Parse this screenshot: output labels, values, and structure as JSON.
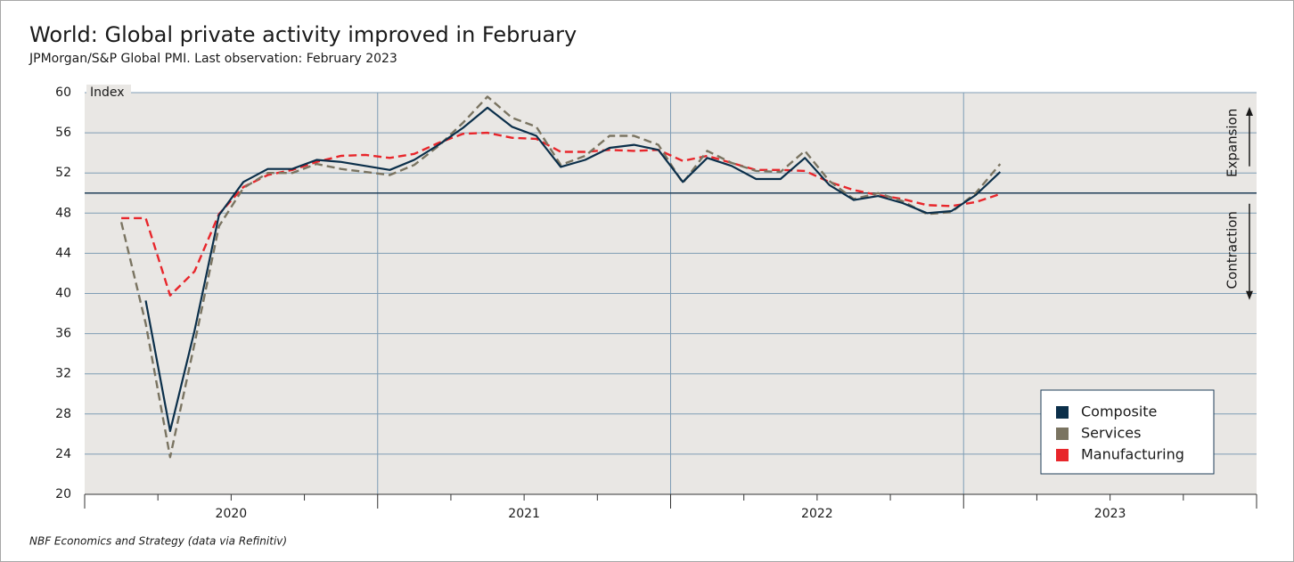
{
  "chart_data": {
    "type": "line",
    "title": "World: Global private activity improved in February",
    "subtitle": "JPMorgan/S&P Global PMI. Last observation: February 2023",
    "y_axis_label": "Index",
    "source": "NBF Economics and Strategy (data via Refinitiv)",
    "annotations": [
      "Expansion",
      "Contraction"
    ],
    "reference_line": 50,
    "x": [
      "2020-02",
      "2020-03",
      "2020-04",
      "2020-05",
      "2020-06",
      "2020-07",
      "2020-08",
      "2020-09",
      "2020-10",
      "2020-11",
      "2020-12",
      "2021-01",
      "2021-02",
      "2021-03",
      "2021-04",
      "2021-05",
      "2021-06",
      "2021-07",
      "2021-08",
      "2021-09",
      "2021-10",
      "2021-11",
      "2021-12",
      "2022-01",
      "2022-02",
      "2022-03",
      "2022-04",
      "2022-05",
      "2022-06",
      "2022-07",
      "2022-08",
      "2022-09",
      "2022-10",
      "2022-11",
      "2022-12",
      "2023-01",
      "2023-02"
    ],
    "series": [
      {
        "name": "Composite",
        "color": "#0b2f4a",
        "dash": false,
        "values": [
          null,
          39.3,
          26.3,
          36.3,
          47.8,
          51.1,
          52.4,
          52.4,
          53.3,
          53.1,
          52.7,
          52.3,
          53.3,
          54.8,
          56.5,
          58.5,
          56.6,
          55.7,
          52.6,
          53.3,
          54.5,
          54.8,
          54.3,
          51.1,
          53.5,
          52.7,
          51.4,
          51.4,
          53.5,
          50.8,
          49.3,
          49.7,
          49.0,
          48.0,
          48.2,
          49.8,
          52.1
        ]
      },
      {
        "name": "Services",
        "color": "#7a7461",
        "dash": true,
        "values": [
          47.1,
          37.0,
          23.7,
          35.0,
          46.7,
          50.5,
          52.0,
          52.0,
          52.9,
          52.4,
          52.1,
          51.8,
          52.8,
          54.7,
          57.0,
          59.6,
          57.5,
          56.6,
          52.8,
          53.7,
          55.7,
          55.7,
          54.8,
          51.0,
          54.2,
          53.0,
          52.2,
          52.1,
          54.2,
          51.2,
          49.4,
          50.0,
          49.2,
          47.9,
          48.1,
          50.0,
          52.9
        ]
      },
      {
        "name": "Manufacturing",
        "color": "#e8262b",
        "dash": true,
        "values": [
          47.5,
          47.5,
          39.8,
          42.2,
          47.9,
          50.6,
          51.8,
          52.3,
          53.1,
          53.7,
          53.8,
          53.5,
          53.9,
          55.0,
          55.9,
          56.0,
          55.5,
          55.4,
          54.1,
          54.1,
          54.3,
          54.2,
          54.3,
          53.2,
          53.7,
          53.0,
          52.3,
          52.3,
          52.2,
          51.1,
          50.3,
          49.8,
          49.4,
          48.8,
          48.7,
          49.1,
          49.9
        ]
      }
    ],
    "xlim": [
      2020,
      2024
    ],
    "xticks": [
      {
        "value": 2020.5,
        "label": "2020"
      },
      {
        "value": 2021.5,
        "label": "2021"
      },
      {
        "value": 2022.5,
        "label": "2022"
      },
      {
        "value": 2023.5,
        "label": "2023"
      }
    ],
    "xminorticks": [
      2020,
      2020.25,
      2020.5,
      2020.75,
      2021,
      2021.25,
      2021.5,
      2021.75,
      2022,
      2022.25,
      2022.5,
      2022.75,
      2023,
      2023.25,
      2023.5,
      2023.75,
      2024
    ],
    "xgrid": [
      2021,
      2022,
      2023
    ],
    "ylim": [
      20,
      60
    ],
    "yticks": [
      20,
      24,
      28,
      32,
      36,
      40,
      44,
      48,
      52,
      56,
      60
    ],
    "grid": true,
    "legend": "lower right"
  }
}
